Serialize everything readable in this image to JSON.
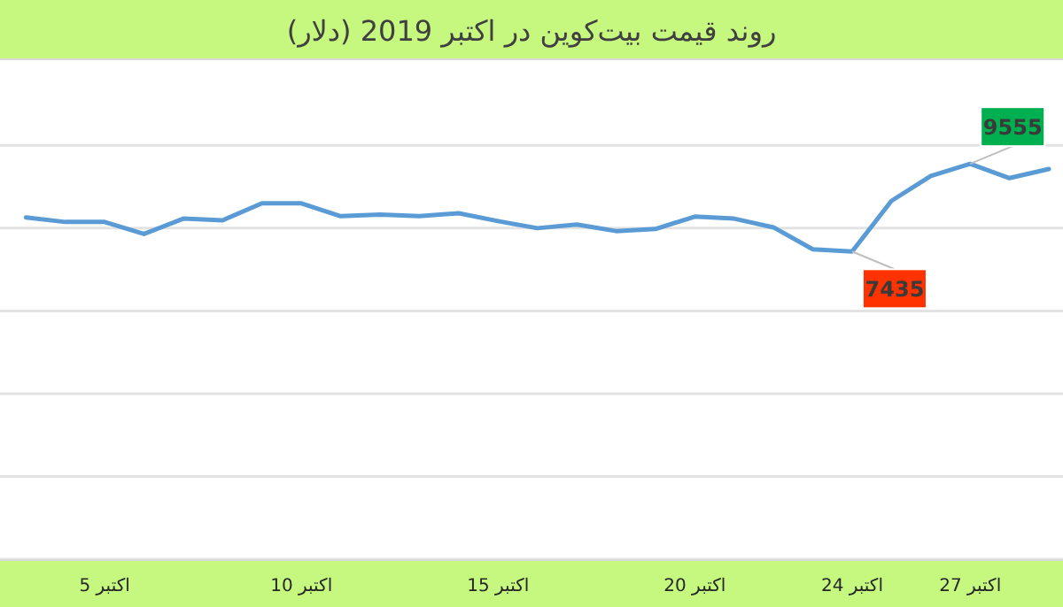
{
  "chart_data": {
    "type": "line",
    "title": "روند قیمت بیت‌کوین در اکتبر 2019 (دلار)",
    "x": [
      3,
      4,
      5,
      6,
      7,
      8,
      9,
      10,
      11,
      12,
      13,
      14,
      15,
      16,
      17,
      18,
      19,
      20,
      21,
      22,
      23,
      24,
      25,
      26,
      27,
      28,
      29
    ],
    "series": [
      {
        "color": "#5b9bd5",
        "values": [
          8260,
          8150,
          8150,
          7860,
          8230,
          8190,
          8600,
          8600,
          8290,
          8330,
          8290,
          8360,
          8170,
          8000,
          8090,
          7930,
          7980,
          8280,
          8230,
          8020,
          7490,
          7435,
          8660,
          9260,
          9555,
          9210,
          9430
        ],
        "value_labels": [
          null,
          null,
          null,
          null,
          null,
          null,
          null,
          null,
          null,
          null,
          null,
          null,
          null,
          null,
          null,
          null,
          null,
          null,
          null,
          null,
          null,
          "7435",
          null,
          null,
          "9555",
          null,
          null
        ]
      }
    ],
    "xlim": [
      2.34,
      29.36
    ],
    "xticks": [
      {
        "value": 5,
        "label": "5 اکتبر"
      },
      {
        "value": 10,
        "label": "10 اکتبر"
      },
      {
        "value": 15,
        "label": "15 اکتبر"
      },
      {
        "value": 20,
        "label": "20 اکتبر"
      },
      {
        "value": 24,
        "label": "24 اکتبر"
      },
      {
        "value": 27,
        "label": "27 اکتبر"
      }
    ],
    "ylim": [
      0,
      12060
    ],
    "yticks": [
      {
        "value": 0,
        "label": null
      },
      {
        "value": 2000,
        "label": null
      },
      {
        "value": 4000,
        "label": null
      },
      {
        "value": 6000,
        "label": null
      },
      {
        "value": 8000,
        "label": null
      },
      {
        "value": 10000,
        "label": null
      }
    ],
    "grid": "y",
    "marker": "none",
    "line_style": "solid",
    "tick_labels": "x"
  }
}
